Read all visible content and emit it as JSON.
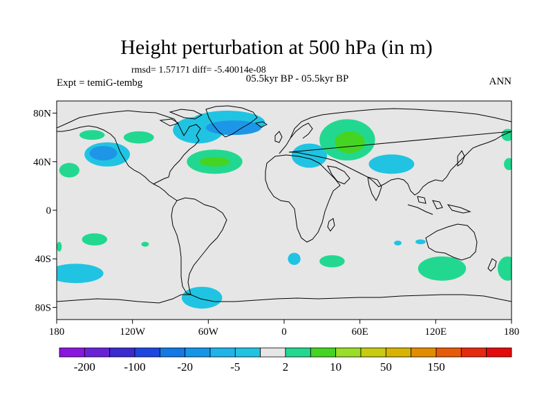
{
  "header": {
    "title": "Height perturbation at 500 hPa (in m)",
    "stats": "rmsd= 1.57171 diff= -5.40014e-08",
    "subtitle": "05.5kyr BP - 05.5kyr BP",
    "expt": "Expt = temiG-tembg",
    "season": "ANN"
  },
  "axes": {
    "y_ticks": [
      {
        "label": "80N",
        "lat": 80
      },
      {
        "label": "40N",
        "lat": 40
      },
      {
        "label": "0",
        "lat": 0
      },
      {
        "label": "40S",
        "lat": -40
      },
      {
        "label": "80S",
        "lat": -80
      }
    ],
    "x_ticks": [
      {
        "label": "180",
        "lon": -180
      },
      {
        "label": "120W",
        "lon": -120
      },
      {
        "label": "60W",
        "lon": -60
      },
      {
        "label": "0",
        "lon": 0
      },
      {
        "label": "60E",
        "lon": 60
      },
      {
        "label": "120E",
        "lon": 120
      },
      {
        "label": "180",
        "lon": 180
      }
    ],
    "lat_range": [
      -90,
      90
    ],
    "lon_range": [
      -180,
      180
    ]
  },
  "colorbar": {
    "colors": [
      "#8a16e0",
      "#6a22d8",
      "#3a2ad0",
      "#1e46e0",
      "#1478e6",
      "#1496e8",
      "#1eb4ea",
      "#20c4e2",
      "#e6e6e6",
      "#22d890",
      "#46d422",
      "#9ade28",
      "#c8cc10",
      "#d8b400",
      "#e48c00",
      "#e65a08",
      "#e62a10",
      "#e60a0a"
    ],
    "labels": [
      {
        "text": "-200",
        "after_index": 0
      },
      {
        "text": "-100",
        "after_index": 2
      },
      {
        "text": "-20",
        "after_index": 4
      },
      {
        "text": "-5",
        "after_index": 6
      },
      {
        "text": "2",
        "after_index": 8
      },
      {
        "text": "10",
        "after_index": 10
      },
      {
        "text": "50",
        "after_index": 12
      },
      {
        "text": "150",
        "after_index": 14
      }
    ]
  },
  "map": {
    "background": "#e6e6e6",
    "anomalies": [
      {
        "lon": -152,
        "lat": 62,
        "rx": 10,
        "ry": 4,
        "color": "#22d890"
      },
      {
        "lon": -115,
        "lat": 60,
        "rx": 12,
        "ry": 5,
        "color": "#22d890"
      },
      {
        "lon": -140,
        "lat": 46,
        "rx": 18,
        "ry": 10,
        "color": "#20c4e2"
      },
      {
        "lon": -143,
        "lat": 47,
        "rx": 11,
        "ry": 6,
        "color": "#1e96e8"
      },
      {
        "lon": -170,
        "lat": 33,
        "rx": 8,
        "ry": 6,
        "color": "#22d890"
      },
      {
        "lon": -68,
        "lat": 66,
        "rx": 20,
        "ry": 11,
        "color": "#20c4e2"
      },
      {
        "lon": -45,
        "lat": 72,
        "rx": 30,
        "ry": 10,
        "color": "#20c4e2"
      },
      {
        "lon": -40,
        "lat": 68,
        "rx": 22,
        "ry": 6,
        "color": "#1e96e8"
      },
      {
        "lon": -55,
        "lat": 40,
        "rx": 22,
        "ry": 10,
        "color": "#22d890"
      },
      {
        "lon": -55,
        "lat": 40,
        "rx": 12,
        "ry": 4,
        "color": "#46d422"
      },
      {
        "lon": 20,
        "lat": 45,
        "rx": 14,
        "ry": 10,
        "color": "#20c4e2"
      },
      {
        "lon": 85,
        "lat": 38,
        "rx": 18,
        "ry": 8,
        "color": "#20c4e2"
      },
      {
        "lon": 50,
        "lat": 58,
        "rx": 22,
        "ry": 17,
        "color": "#22d890"
      },
      {
        "lon": 52,
        "lat": 56,
        "rx": 12,
        "ry": 9,
        "color": "#46d422"
      },
      {
        "lon": -178,
        "lat": -30,
        "rx": 2,
        "ry": 4,
        "color": "#22d890"
      },
      {
        "lon": -150,
        "lat": -24,
        "rx": 10,
        "ry": 5,
        "color": "#22d890"
      },
      {
        "lon": -110,
        "lat": -28,
        "rx": 3,
        "ry": 2,
        "color": "#22d890"
      },
      {
        "lon": -165,
        "lat": -52,
        "rx": 22,
        "ry": 8,
        "color": "#20c4e2"
      },
      {
        "lon": -65,
        "lat": -72,
        "rx": 16,
        "ry": 9,
        "color": "#20c4e2"
      },
      {
        "lon": 8,
        "lat": -40,
        "rx": 5,
        "ry": 5,
        "color": "#20c4e2"
      },
      {
        "lon": 38,
        "lat": -42,
        "rx": 10,
        "ry": 5,
        "color": "#22d890"
      },
      {
        "lon": 90,
        "lat": -27,
        "rx": 3,
        "ry": 2,
        "color": "#20c4e2"
      },
      {
        "lon": 108,
        "lat": -26,
        "rx": 4,
        "ry": 2,
        "color": "#20c4e2"
      },
      {
        "lon": 125,
        "lat": -48,
        "rx": 19,
        "ry": 10,
        "color": "#22d890"
      },
      {
        "lon": 177,
        "lat": -48,
        "rx": 8,
        "ry": 10,
        "color": "#22d890"
      },
      {
        "lon": 177,
        "lat": 62,
        "rx": 5,
        "ry": 5,
        "color": "#22d890"
      },
      {
        "lon": 178,
        "lat": 38,
        "rx": 4,
        "ry": 5,
        "color": "#22d890"
      }
    ]
  }
}
